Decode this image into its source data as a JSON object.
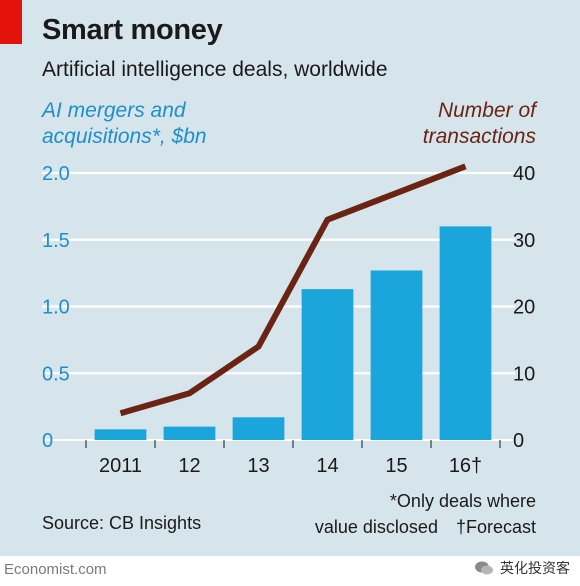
{
  "chart_data": {
    "type": "bar",
    "title": "Smart money",
    "subtitle": "Artificial intelligence deals, worldwide",
    "categories": [
      "2011",
      "12",
      "13",
      "14",
      "15",
      "16†"
    ],
    "series": [
      {
        "name": "AI mergers and acquisitions*, $bn",
        "type": "bar",
        "axis": "left",
        "values": [
          0.08,
          0.1,
          0.17,
          1.13,
          1.27,
          1.6
        ]
      },
      {
        "name": "Number of transactions",
        "type": "line",
        "axis": "right",
        "values": [
          4,
          7,
          14,
          33,
          37,
          41
        ]
      }
    ],
    "left_axis": {
      "title_lines": [
        "AI mergers and",
        "acquisitions*, $bn"
      ],
      "ylim": [
        0,
        2.0
      ],
      "ticks": [
        "0",
        "0.5",
        "1.0",
        "1.5",
        "2.0"
      ]
    },
    "right_axis": {
      "title_lines": [
        "Number of",
        "transactions"
      ],
      "ylim": [
        0,
        40
      ],
      "ticks": [
        "0",
        "10",
        "20",
        "30",
        "40"
      ]
    },
    "grid": true,
    "footnote_lines": [
      "*Only deals where",
      "value disclosed",
      "†Forecast"
    ],
    "source": "Source: CB Insights"
  },
  "colors": {
    "bar": "#1aa6db",
    "line": "#6b2414",
    "grid": "#ffffff",
    "left_axis_text": "#1f8fc9",
    "right_axis_text": "#6b2414",
    "brand_red": "#e3120b",
    "background": "#d6e4ec"
  },
  "watermarks": {
    "left": "Economist.com",
    "right": "英化投资客"
  }
}
